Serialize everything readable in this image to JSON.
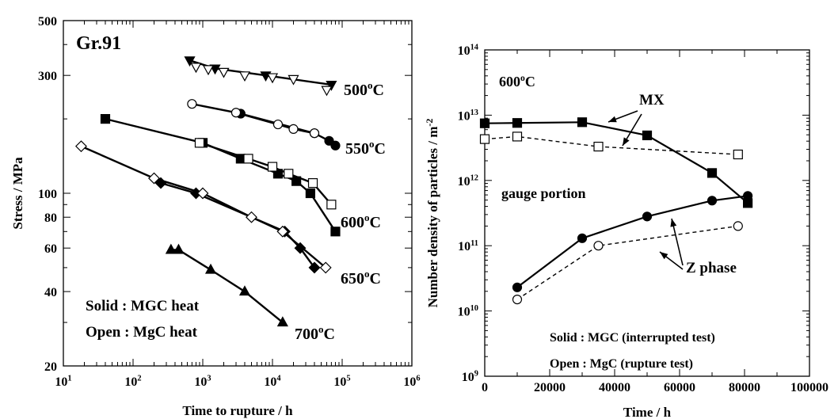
{
  "chart_data": [
    {
      "type": "scatter",
      "panel_label": "Gr.91",
      "xlabel": "Time to rupture / h",
      "ylabel": "Stress / MPa",
      "xscale": "log",
      "yscale": "log",
      "xlim": [
        10,
        1000000
      ],
      "ylim": [
        20,
        500
      ],
      "x_ticks": [
        {
          "v": 10,
          "b": "10",
          "e": "1"
        },
        {
          "v": 100,
          "b": "10",
          "e": "2"
        },
        {
          "v": 1000,
          "b": "10",
          "e": "3"
        },
        {
          "v": 10000,
          "b": "10",
          "e": "4"
        },
        {
          "v": 100000,
          "b": "10",
          "e": "5"
        },
        {
          "v": 1000000,
          "b": "10",
          "e": "6"
        }
      ],
      "y_ticks": [
        {
          "v": 20,
          "label": "20"
        },
        {
          "v": 40,
          "label": "40"
        },
        {
          "v": 60,
          "label": "60"
        },
        {
          "v": 80,
          "label": "80"
        },
        {
          "v": 100,
          "label": "100"
        },
        {
          "v": 300,
          "label": "300"
        },
        {
          "v": 500,
          "label": "500"
        }
      ],
      "legend_lines": [
        "Solid : MGC heat",
        "Open : MgC heat"
      ],
      "series": [
        {
          "name": "500°C",
          "heat": "MGC",
          "marker": "triangle-down",
          "filled": true,
          "line": true,
          "points": [
            [
              650,
              345
            ],
            [
              1500,
              320
            ],
            [
              8000,
              300
            ],
            [
              70000,
              275
            ]
          ]
        },
        {
          "name": "500°C",
          "heat": "MgC",
          "marker": "triangle-down",
          "filled": false,
          "line": false,
          "points": [
            [
              800,
              325
            ],
            [
              1200,
              318
            ],
            [
              2000,
              310
            ],
            [
              4000,
              300
            ],
            [
              10000,
              295
            ],
            [
              20000,
              290
            ],
            [
              60000,
              262
            ]
          ]
        },
        {
          "name": "550°C",
          "heat": "MGC",
          "marker": "circle",
          "filled": true,
          "line": true,
          "points": [
            [
              3500,
              210
            ],
            [
              40000,
              175
            ],
            [
              65000,
              163
            ],
            [
              80000,
              156
            ]
          ]
        },
        {
          "name": "550°C",
          "heat": "MgC",
          "marker": "circle",
          "filled": false,
          "line": true,
          "points": [
            [
              700,
              230
            ],
            [
              3000,
              212
            ],
            [
              12000,
              190
            ],
            [
              20000,
              182
            ],
            [
              40000,
              175
            ]
          ]
        },
        {
          "name": "600°C",
          "heat": "MGC",
          "marker": "square",
          "filled": true,
          "line": true,
          "points": [
            [
              40,
              200
            ],
            [
              1000,
              160
            ],
            [
              3500,
              138
            ],
            [
              12000,
              120
            ],
            [
              22000,
              112
            ],
            [
              35000,
              100
            ],
            [
              80000,
              70
            ]
          ]
        },
        {
          "name": "600°C",
          "heat": "MgC",
          "marker": "square",
          "filled": false,
          "line": true,
          "points": [
            [
              900,
              160
            ],
            [
              4500,
              138
            ],
            [
              10000,
              128
            ],
            [
              17000,
              120
            ],
            [
              38000,
              110
            ],
            [
              70000,
              90
            ]
          ]
        },
        {
          "name": "650°C",
          "heat": "MGC",
          "marker": "diamond",
          "filled": true,
          "line": true,
          "points": [
            [
              250,
              110
            ],
            [
              800,
              100
            ],
            [
              15000,
              70
            ],
            [
              25000,
              60
            ],
            [
              40000,
              50
            ]
          ]
        },
        {
          "name": "650°C",
          "heat": "MgC",
          "marker": "diamond",
          "filled": false,
          "line": true,
          "points": [
            [
              18,
              155
            ],
            [
              200,
              115
            ],
            [
              1000,
              100
            ],
            [
              5000,
              80
            ],
            [
              14000,
              70
            ],
            [
              58000,
              50
            ]
          ]
        },
        {
          "name": "700°C",
          "heat": "MGC",
          "marker": "triangle-up",
          "filled": true,
          "line": true,
          "points": [
            [
              350,
              59
            ],
            [
              450,
              59
            ],
            [
              1300,
              49
            ],
            [
              4000,
              40
            ],
            [
              14000,
              30
            ]
          ]
        }
      ],
      "curve_labels": [
        {
          "base": "500",
          "sup": "o",
          "unit": "C"
        },
        {
          "base": "550",
          "sup": "o",
          "unit": "C"
        },
        {
          "base": "600",
          "sup": "o",
          "unit": "C"
        },
        {
          "base": "650",
          "sup": "o",
          "unit": "C"
        },
        {
          "base": "700",
          "sup": "o",
          "unit": "C"
        }
      ]
    },
    {
      "type": "line",
      "panel_label": {
        "base": "600",
        "sup": "o",
        "unit": "C"
      },
      "xlabel": "Time / h",
      "ylabel": "Number density of particles / m",
      "ylabel_sup": "-2",
      "xscale": "linear",
      "yscale": "log",
      "xlim": [
        0,
        100000
      ],
      "ylim": [
        1000000000,
        100000000000000
      ],
      "x_ticks": [
        {
          "v": 0,
          "label": "0"
        },
        {
          "v": 20000,
          "label": "20000"
        },
        {
          "v": 40000,
          "label": "40000"
        },
        {
          "v": 60000,
          "label": "60000"
        },
        {
          "v": 80000,
          "label": "80000"
        },
        {
          "v": 100000,
          "label": "100000"
        }
      ],
      "y_ticks": [
        {
          "v": 1000000000,
          "b": "10",
          "e": "9"
        },
        {
          "v": 10000000000,
          "b": "10",
          "e": "10"
        },
        {
          "v": 100000000000,
          "b": "10",
          "e": "11"
        },
        {
          "v": 1000000000000,
          "b": "10",
          "e": "12"
        },
        {
          "v": 10000000000000,
          "b": "10",
          "e": "13"
        },
        {
          "v": 100000000000000,
          "b": "10",
          "e": "14"
        }
      ],
      "annotations": [
        "MX",
        "Z phase",
        "gauge portion"
      ],
      "legend_lines": [
        "Solid : MGC (interrupted test)",
        "Open : MgC (rupture test)"
      ],
      "series": [
        {
          "name": "MX",
          "heat": "MGC",
          "marker": "square",
          "filled": true,
          "dash": false,
          "points": [
            [
              0,
              7500000000000.0
            ],
            [
              10000,
              7600000000000.0
            ],
            [
              30000,
              7800000000000.0
            ],
            [
              50000,
              4900000000000.0
            ],
            [
              70000,
              1300000000000.0
            ],
            [
              81000,
              450000000000.0
            ]
          ]
        },
        {
          "name": "MX",
          "heat": "MgC",
          "marker": "square",
          "filled": false,
          "dash": true,
          "points": [
            [
              0,
              4300000000000.0
            ],
            [
              10000,
              4700000000000.0
            ],
            [
              35000,
              3300000000000.0
            ],
            [
              78000,
              2500000000000.0
            ]
          ]
        },
        {
          "name": "Z phase",
          "heat": "MGC",
          "marker": "circle",
          "filled": true,
          "dash": false,
          "points": [
            [
              10000,
              23000000000.0
            ],
            [
              30000,
              130000000000.0
            ],
            [
              50000,
              280000000000.0
            ],
            [
              70000,
              490000000000.0
            ],
            [
              81000,
              580000000000.0
            ]
          ]
        },
        {
          "name": "Z phase",
          "heat": "MgC",
          "marker": "circle",
          "filled": false,
          "dash": true,
          "points": [
            [
              10000,
              15000000000.0
            ],
            [
              35000,
              100000000000.0
            ],
            [
              78000,
              200000000000.0
            ]
          ]
        }
      ]
    }
  ]
}
